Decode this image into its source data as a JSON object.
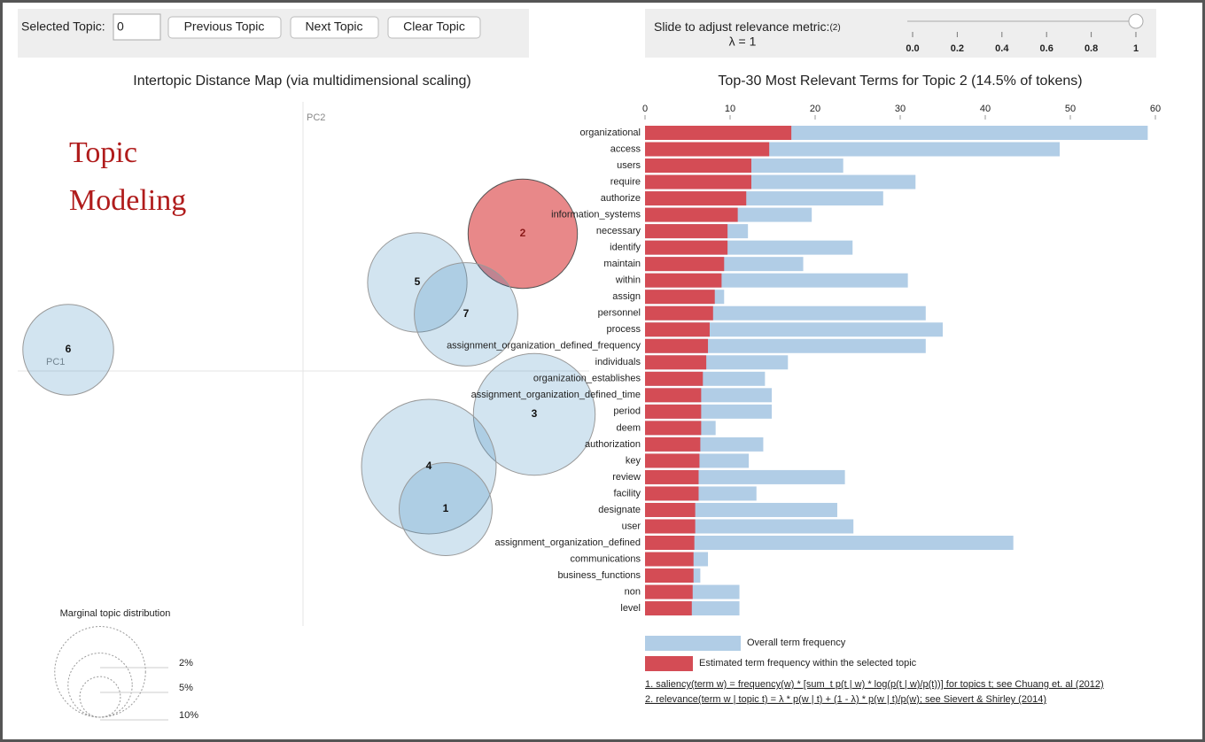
{
  "controls": {
    "selected_topic_label": "Selected Topic:",
    "selected_topic_value": "0",
    "buttons": [
      "Previous Topic",
      "Next Topic",
      "Clear Topic"
    ]
  },
  "slider": {
    "label": "Slide to adjust relevance metric:",
    "note": "(2)",
    "value_label": "λ = 1",
    "value": 1,
    "range": [
      0,
      1
    ],
    "ticks": [
      {
        "value": 0,
        "label": "0.0"
      },
      {
        "value": 0.2,
        "label": "0.2"
      },
      {
        "value": 0.4,
        "label": "0.4"
      },
      {
        "value": 0.6,
        "label": "0.6"
      },
      {
        "value": 0.8,
        "label": "0.8"
      },
      1
    ]
  },
  "overlay": [
    "Topic",
    "Modeling"
  ],
  "chart_data": [
    {
      "type": "bubble",
      "title": "Intertopic Distance Map (via multidimensional scaling)",
      "x_label": "PC1",
      "y_label": "PC2",
      "xlim": [
        -1.61,
        1.615
      ],
      "ylim": [
        -1.44,
        1.52
      ],
      "labels": [
        "2",
        "5",
        "7",
        "6",
        "3",
        "4",
        "1"
      ],
      "x": [
        1.24,
        0.645,
        0.92,
        -1.325,
        1.305,
        0.71,
        0.805
      ],
      "y": [
        0.775,
        0.5,
        0.32,
        0.12,
        -0.245,
        -0.54,
        -0.78
      ],
      "sizes": [
        14.5,
        12,
        13,
        10,
        18,
        22,
        10.5
      ],
      "highlight": "2",
      "color": "#1f77b4",
      "highlight_color": "#d62728",
      "size_legend": {
        "title": "Marginal topic distribution",
        "values": [
          2,
          5,
          10
        ],
        "value_labels": [
          "2%",
          "5%",
          "10%"
        ]
      }
    },
    {
      "type": "hbar",
      "title": "Top-30 Most Relevant Terms for Topic 2 (14.5% of tokens)",
      "categories": [
        "organizational",
        "access",
        "users",
        "require",
        "authorize",
        "information_systems",
        "necessary",
        "identify",
        "maintain",
        "within",
        "assign",
        "personnel",
        "process",
        "assignment_organization_defined_frequency",
        "individuals",
        "organization_establishes",
        "assignment_organization_defined_time",
        "period",
        "deem",
        "authorization",
        "key",
        "review",
        "facility",
        "designate",
        "user",
        "assignment_organization_defined",
        "communications",
        "business_functions",
        "non",
        "level"
      ],
      "series": [
        {
          "name": "Overall term frequency",
          "color": "#b1cde6",
          "values": [
            59.1,
            48.75,
            23.3,
            31.8,
            28,
            19.6,
            12.1,
            24.4,
            18.6,
            30.9,
            9.3,
            33,
            35,
            33,
            16.8,
            14.1,
            14.9,
            14.9,
            8.3,
            13.9,
            12.2,
            23.5,
            13.1,
            22.6,
            24.5,
            43.3,
            7.4,
            6.5,
            11.1,
            11.1
          ]
        },
        {
          "name": "Estimated term frequency within the selected topic",
          "color": "#d44c55",
          "values": [
            17.2,
            14.6,
            12.5,
            12.5,
            11.9,
            10.9,
            9.7,
            9.7,
            9.3,
            9,
            8.2,
            8,
            7.6,
            7.4,
            7.2,
            6.8,
            6.6,
            6.6,
            6.6,
            6.5,
            6.4,
            6.3,
            6.3,
            5.9,
            5.9,
            5.8,
            5.7,
            5.7,
            5.6,
            5.5
          ]
        }
      ],
      "xlim": [
        0,
        60
      ],
      "xticks": [
        0,
        10,
        20,
        30,
        40,
        50,
        60
      ],
      "footnotes": [
        "1. saliency(term w) = frequency(w) * [sum_t p(t | w) * log(p(t | w)/p(t))] for topics t; see Chuang et. al (2012)",
        "2. relevance(term w | topic t) = λ * p(w | t) + (1 - λ) * p(w | t)/p(w); see Sievert & Shirley (2014)"
      ]
    }
  ]
}
